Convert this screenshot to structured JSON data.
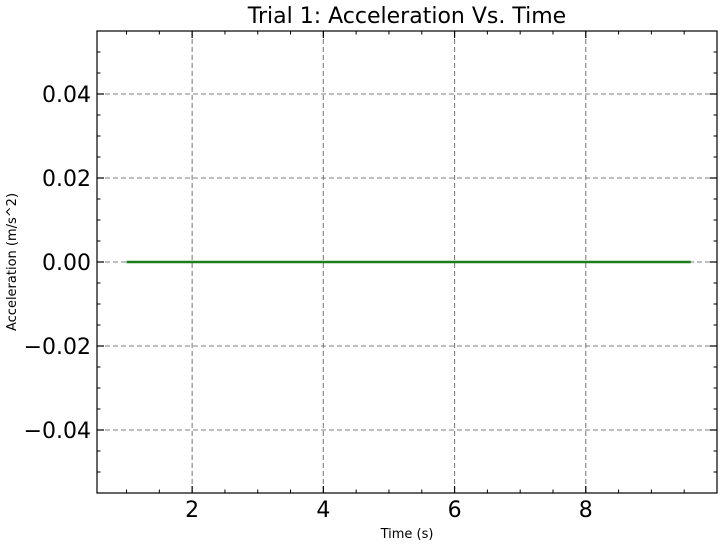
{
  "chart_data": {
    "type": "line",
    "title": "Trial 1: Acceleration Vs. Time",
    "xlabel": "Time (s)",
    "ylabel": "Acceleration (m/s^2)",
    "xlim": [
      0.55,
      10.0
    ],
    "ylim": [
      -0.055,
      0.055
    ],
    "x_ticks": [
      2,
      4,
      6,
      8
    ],
    "x_tick_labels": [
      "2",
      "4",
      "6",
      "8"
    ],
    "y_ticks": [
      -0.04,
      -0.02,
      0.0,
      0.02,
      0.04
    ],
    "y_tick_labels": [
      "−0.04",
      "−0.02",
      "0.00",
      "0.02",
      "0.04"
    ],
    "grid": true,
    "series": [
      {
        "color": "#1b7f1b",
        "x": [
          1.0,
          9.6
        ],
        "y": [
          0.0,
          0.0
        ]
      }
    ]
  }
}
